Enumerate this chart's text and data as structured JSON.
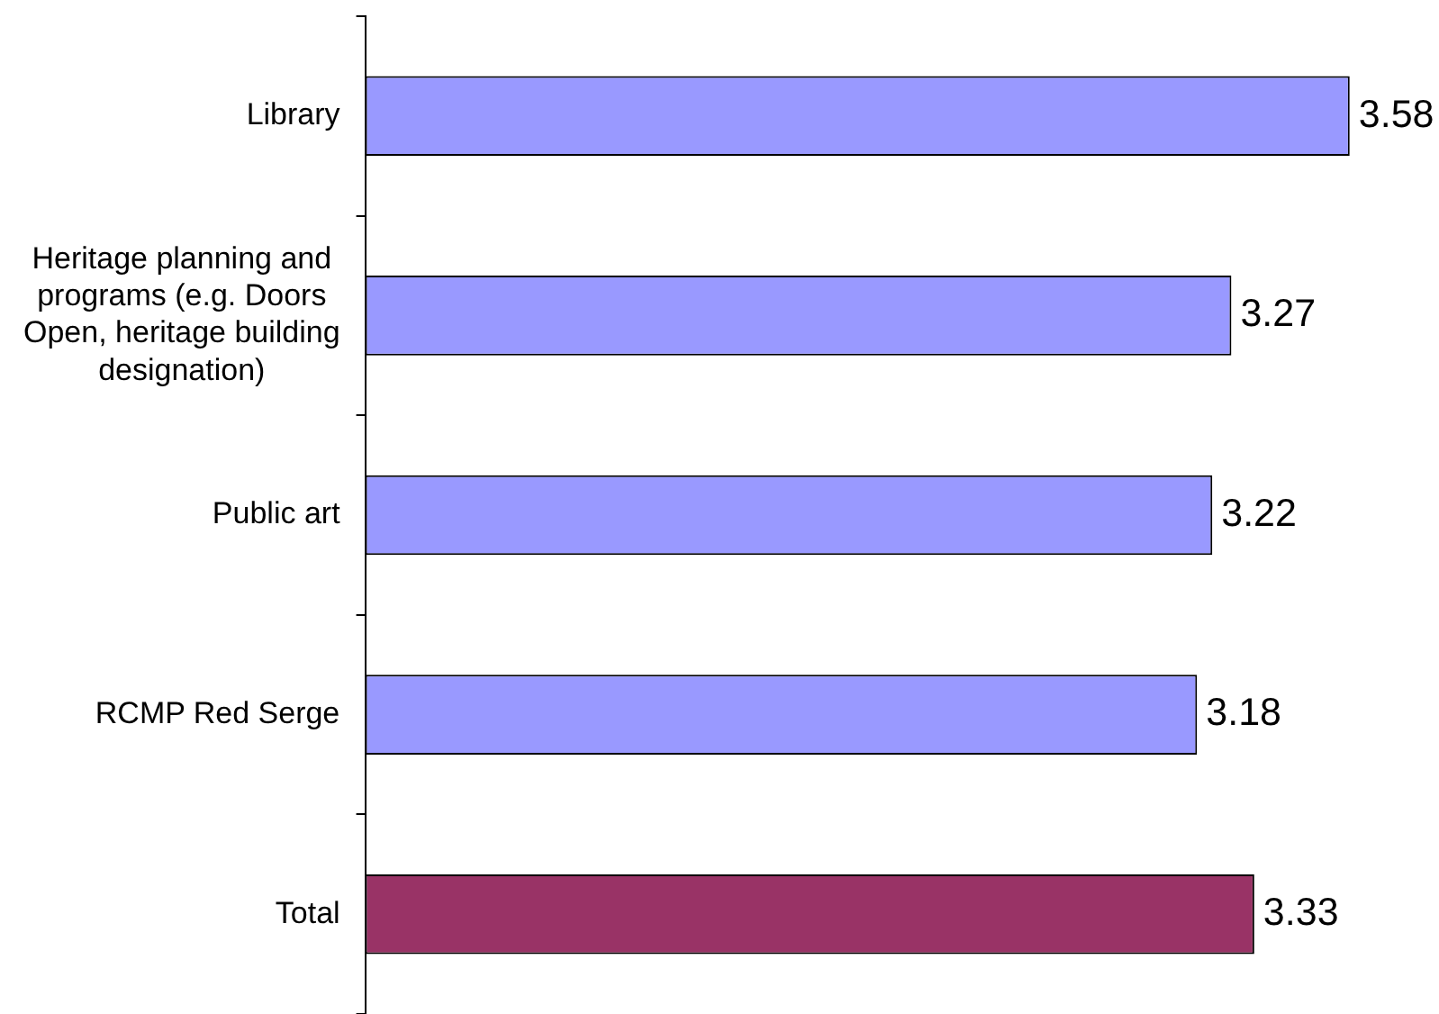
{
  "chart_data": {
    "type": "bar",
    "orientation": "horizontal",
    "categories": [
      "Library",
      "Heritage planning and programs (e.g. Doors Open, heritage building designation)",
      "Public art",
      "RCMP Red Serge",
      "Total"
    ],
    "values": [
      3.58,
      3.27,
      3.22,
      3.18,
      3.33
    ],
    "colors": [
      "#9999ff",
      "#9999ff",
      "#9999ff",
      "#9999ff",
      "#993366"
    ],
    "xlim": [
      1,
      3.8
    ],
    "data_labels": true,
    "tick_labels": "y"
  }
}
